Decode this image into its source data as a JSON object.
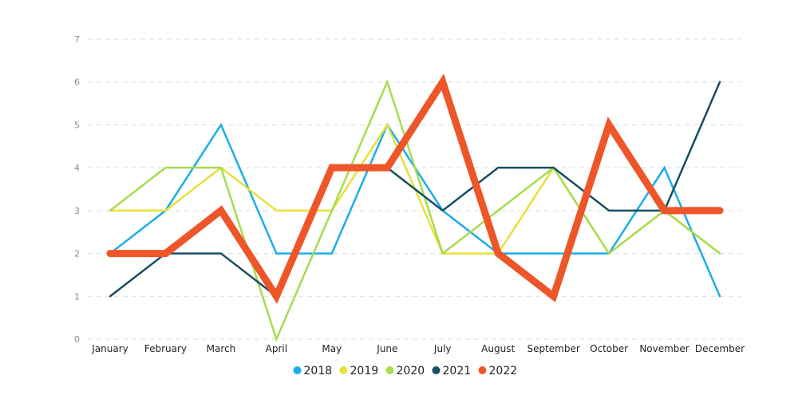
{
  "chart_data": {
    "type": "line",
    "categories": [
      "January",
      "February",
      "March",
      "April",
      "May",
      "June",
      "July",
      "August",
      "September",
      "October",
      "November",
      "December"
    ],
    "ylim": [
      0,
      7
    ],
    "yticks": [
      0,
      1,
      2,
      3,
      4,
      5,
      6,
      7
    ],
    "grid": true,
    "legend_position": "bottom",
    "title": "",
    "xlabel": "",
    "ylabel": "",
    "series": [
      {
        "name": "2018",
        "color": "#1aaee8",
        "values": [
          2,
          3,
          5,
          2,
          2,
          5,
          3,
          2,
          2,
          2,
          4,
          1
        ]
      },
      {
        "name": "2019",
        "color": "#e8e03a",
        "values": [
          3,
          3,
          4,
          3,
          3,
          5,
          2,
          2,
          4,
          2,
          3,
          2
        ]
      },
      {
        "name": "2020",
        "color": "#a6dc4e",
        "values": [
          3,
          4,
          4,
          0,
          3,
          6,
          2,
          3,
          4,
          2,
          3,
          2
        ]
      },
      {
        "name": "2021",
        "color": "#184e60",
        "values": [
          1,
          2,
          2,
          1,
          4,
          4,
          3,
          4,
          4,
          3,
          3,
          6
        ]
      },
      {
        "name": "2022",
        "color": "#ee5528",
        "values": [
          2,
          2,
          3,
          1,
          4,
          4,
          6,
          2,
          1,
          5,
          3,
          3
        ]
      }
    ]
  }
}
